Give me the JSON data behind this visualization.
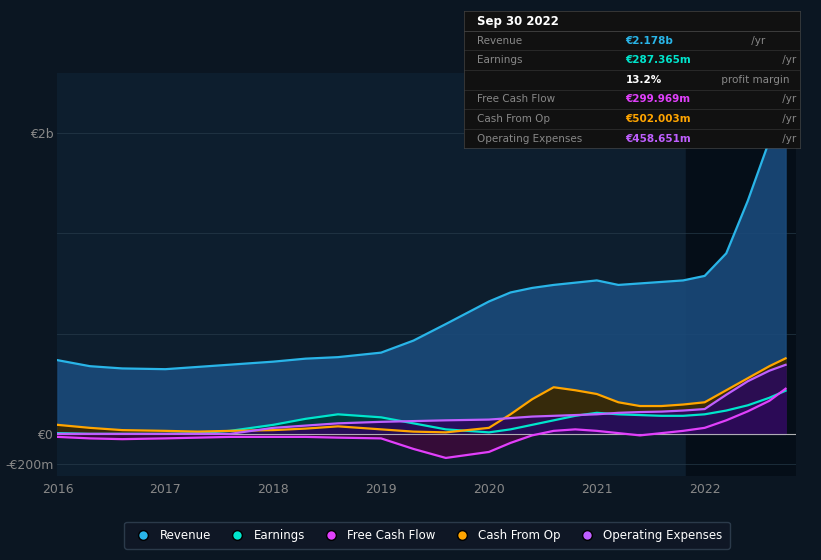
{
  "background_color": "#0b1622",
  "plot_bg_color": "#0d1e2e",
  "highlight_bg": "#0a1520",
  "grid_color": "#1e3a4a",
  "series": {
    "Revenue": {
      "color": "#29b5e8",
      "fill_color": "#1a4a7a",
      "x": [
        2016.0,
        2016.3,
        2016.6,
        2017.0,
        2017.3,
        2017.6,
        2018.0,
        2018.3,
        2018.6,
        2019.0,
        2019.3,
        2019.6,
        2020.0,
        2020.2,
        2020.4,
        2020.6,
        2020.8,
        2021.0,
        2021.2,
        2021.4,
        2021.6,
        2021.8,
        2022.0,
        2022.2,
        2022.4,
        2022.6,
        2022.75
      ],
      "y": [
        490,
        450,
        435,
        430,
        445,
        460,
        480,
        500,
        510,
        540,
        620,
        730,
        880,
        940,
        970,
        990,
        1005,
        1020,
        990,
        1000,
        1010,
        1020,
        1050,
        1200,
        1550,
        1950,
        2178
      ]
    },
    "Earnings": {
      "color": "#00e5cc",
      "fill_color": "#003a3a",
      "x": [
        2016.0,
        2016.3,
        2016.6,
        2017.0,
        2017.3,
        2017.6,
        2018.0,
        2018.3,
        2018.6,
        2019.0,
        2019.3,
        2019.6,
        2020.0,
        2020.2,
        2020.4,
        2020.6,
        2020.8,
        2021.0,
        2021.2,
        2021.4,
        2021.6,
        2021.8,
        2022.0,
        2022.2,
        2022.4,
        2022.6,
        2022.75
      ],
      "y": [
        5,
        0,
        0,
        0,
        5,
        20,
        60,
        100,
        130,
        110,
        70,
        30,
        10,
        30,
        60,
        90,
        120,
        140,
        130,
        125,
        120,
        120,
        130,
        155,
        190,
        240,
        287
      ]
    },
    "Free Cash Flow": {
      "color": "#e040fb",
      "fill_color": "#3a0a3a",
      "x": [
        2016.0,
        2016.3,
        2016.6,
        2017.0,
        2017.3,
        2017.6,
        2018.0,
        2018.3,
        2018.6,
        2019.0,
        2019.3,
        2019.6,
        2020.0,
        2020.2,
        2020.4,
        2020.6,
        2020.8,
        2021.0,
        2021.2,
        2021.4,
        2021.6,
        2021.8,
        2022.0,
        2022.2,
        2022.4,
        2022.6,
        2022.75
      ],
      "y": [
        -20,
        -30,
        -35,
        -30,
        -25,
        -20,
        -20,
        -20,
        -25,
        -30,
        -100,
        -160,
        -120,
        -60,
        -10,
        20,
        30,
        20,
        5,
        -10,
        5,
        20,
        40,
        90,
        150,
        220,
        300
      ]
    },
    "Cash From Op": {
      "color": "#ffa500",
      "fill_color": "#3a2800",
      "x": [
        2016.0,
        2016.3,
        2016.6,
        2017.0,
        2017.3,
        2017.6,
        2018.0,
        2018.3,
        2018.6,
        2019.0,
        2019.3,
        2019.6,
        2020.0,
        2020.2,
        2020.4,
        2020.6,
        2020.8,
        2021.0,
        2021.2,
        2021.4,
        2021.6,
        2021.8,
        2022.0,
        2022.2,
        2022.4,
        2022.6,
        2022.75
      ],
      "y": [
        60,
        40,
        25,
        20,
        15,
        20,
        25,
        35,
        50,
        30,
        15,
        10,
        40,
        130,
        230,
        310,
        290,
        265,
        210,
        185,
        185,
        195,
        210,
        290,
        370,
        450,
        502
      ]
    },
    "Operating Expenses": {
      "color": "#bf5fff",
      "fill_color": "#2a0a5a",
      "x": [
        2016.0,
        2016.3,
        2016.6,
        2017.0,
        2017.3,
        2017.6,
        2018.0,
        2018.3,
        2018.6,
        2019.0,
        2019.3,
        2019.6,
        2020.0,
        2020.2,
        2020.4,
        2020.6,
        2020.8,
        2021.0,
        2021.2,
        2021.4,
        2021.6,
        2021.8,
        2022.0,
        2022.2,
        2022.4,
        2022.6,
        2022.75
      ],
      "y": [
        0,
        0,
        0,
        0,
        0,
        0,
        40,
        55,
        70,
        80,
        85,
        90,
        95,
        105,
        115,
        120,
        125,
        130,
        140,
        145,
        148,
        155,
        165,
        260,
        350,
        420,
        459
      ]
    }
  },
  "yticks": [
    -200,
    0,
    2000
  ],
  "ytick_labels": [
    "-€200m",
    "€0",
    "€2b"
  ],
  "xticks": [
    2016,
    2017,
    2018,
    2019,
    2020,
    2021,
    2022
  ],
  "xlim": [
    2016.0,
    2022.85
  ],
  "ylim": [
    -280,
    2400
  ],
  "highlight_x_start": 2021.83,
  "zero_line_y": 0,
  "grid_lines_y": [
    -200,
    0,
    667,
    1333,
    2000
  ],
  "tooltip": {
    "title": "Sep 30 2022",
    "rows": [
      {
        "label": "Revenue",
        "value": "€2.178b",
        "unit": " /yr",
        "value_color": "#29b5e8",
        "label_color": "#888888"
      },
      {
        "label": "Earnings",
        "value": "€287.365m",
        "unit": " /yr",
        "value_color": "#00e5cc",
        "label_color": "#888888"
      },
      {
        "label": "",
        "value": "13.2%",
        "unit": " profit margin",
        "value_color": "#ffffff",
        "label_color": "#888888"
      },
      {
        "label": "Free Cash Flow",
        "value": "€299.969m",
        "unit": " /yr",
        "value_color": "#e040fb",
        "label_color": "#888888"
      },
      {
        "label": "Cash From Op",
        "value": "€502.003m",
        "unit": " /yr",
        "value_color": "#ffa500",
        "label_color": "#888888"
      },
      {
        "label": "Operating Expenses",
        "value": "€458.651m",
        "unit": " /yr",
        "value_color": "#bf5fff",
        "label_color": "#888888"
      }
    ]
  },
  "legend": [
    {
      "label": "Revenue",
      "color": "#29b5e8"
    },
    {
      "label": "Earnings",
      "color": "#00e5cc"
    },
    {
      "label": "Free Cash Flow",
      "color": "#e040fb"
    },
    {
      "label": "Cash From Op",
      "color": "#ffa500"
    },
    {
      "label": "Operating Expenses",
      "color": "#bf5fff"
    }
  ]
}
